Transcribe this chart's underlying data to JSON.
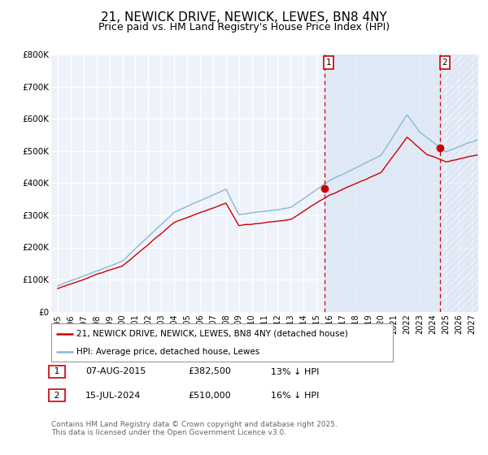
{
  "title": "21, NEWICK DRIVE, NEWICK, LEWES, BN8 4NY",
  "subtitle": "Price paid vs. HM Land Registry's House Price Index (HPI)",
  "legend_label_red": "21, NEWICK DRIVE, NEWICK, LEWES, BN8 4NY (detached house)",
  "legend_label_blue": "HPI: Average price, detached house, Lewes",
  "footer": "Contains HM Land Registry data © Crown copyright and database right 2025.\nThis data is licensed under the Open Government Licence v3.0.",
  "annotation1_date": "07-AUG-2015",
  "annotation1_price": "£382,500",
  "annotation1_hpi": "13% ↓ HPI",
  "annotation2_date": "15-JUL-2024",
  "annotation2_price": "£510,000",
  "annotation2_hpi": "16% ↓ HPI",
  "vline1_x": 2015.6,
  "vline2_x": 2024.54,
  "marker1_x": 2015.6,
  "marker1_y": 382500,
  "marker2_x": 2024.54,
  "marker2_y": 510000,
  "ylim": [
    0,
    800000
  ],
  "xlim": [
    1994.5,
    2027.5
  ],
  "yticks": [
    0,
    100000,
    200000,
    300000,
    400000,
    500000,
    600000,
    700000,
    800000
  ],
  "ytick_labels": [
    "£0",
    "£100K",
    "£200K",
    "£300K",
    "£400K",
    "£500K",
    "£600K",
    "£700K",
    "£800K"
  ],
  "xticks": [
    1995,
    1996,
    1997,
    1998,
    1999,
    2000,
    2001,
    2002,
    2003,
    2004,
    2005,
    2006,
    2007,
    2008,
    2009,
    2010,
    2011,
    2012,
    2013,
    2014,
    2015,
    2016,
    2017,
    2018,
    2019,
    2020,
    2021,
    2022,
    2023,
    2024,
    2025,
    2026,
    2027
  ],
  "background_color": "#eef2fa",
  "shade_color": "#dde8f5",
  "grid_color": "#ffffff",
  "red_color": "#cc0000",
  "blue_color": "#88b8d8",
  "title_fontsize": 11,
  "subtitle_fontsize": 9
}
